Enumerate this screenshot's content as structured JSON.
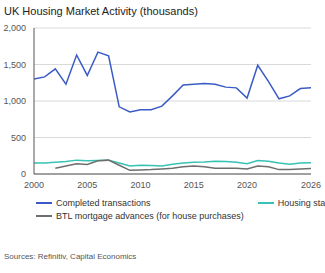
{
  "chart_data": {
    "type": "line",
    "title": "UK Housing Market Activity (thousands)",
    "source": "Sources: Refinitiv, Capital Economics",
    "x": [
      2000,
      2001,
      2002,
      2003,
      2004,
      2005,
      2006,
      2007,
      2008,
      2009,
      2010,
      2011,
      2012,
      2013,
      2014,
      2015,
      2016,
      2017,
      2018,
      2019,
      2020,
      2021,
      2022,
      2023,
      2024,
      2025,
      2026
    ],
    "series": [
      {
        "name": "Completed transactions",
        "color": "#3a5bc7",
        "values": [
          1300,
          1330,
          1440,
          1230,
          1630,
          1350,
          1670,
          1620,
          920,
          850,
          880,
          880,
          930,
          1070,
          1220,
          1230,
          1240,
          1230,
          1190,
          1180,
          1040,
          1490,
          1270,
          1030,
          1070,
          1170,
          1180
        ]
      },
      {
        "name": "Housing starts",
        "color": "#36c2b4",
        "values": [
          150,
          150,
          160,
          170,
          190,
          180,
          185,
          190,
          150,
          110,
          120,
          115,
          110,
          135,
          150,
          160,
          165,
          175,
          170,
          160,
          140,
          185,
          175,
          150,
          135,
          150,
          155
        ]
      },
      {
        "name": "BTL mortgage advances (for house purchases)",
        "color": "#6e6e6e",
        "values": [
          null,
          null,
          80,
          110,
          140,
          130,
          180,
          190,
          120,
          50,
          55,
          60,
          70,
          80,
          100,
          110,
          100,
          80,
          80,
          80,
          70,
          110,
          100,
          60,
          60,
          70,
          75
        ]
      }
    ],
    "xlim": [
      2000,
      2026
    ],
    "xticks": [
      2000,
      2005,
      2010,
      2015,
      2020,
      2026
    ],
    "ylim": [
      0,
      2000
    ],
    "yticks": [
      0,
      500,
      {
        "value": 1000,
        "label": "1,000"
      },
      {
        "value": 1500,
        "label": "1,500"
      },
      {
        "value": 2000,
        "label": "2,000"
      }
    ],
    "grid": true,
    "legend": "bottom"
  }
}
